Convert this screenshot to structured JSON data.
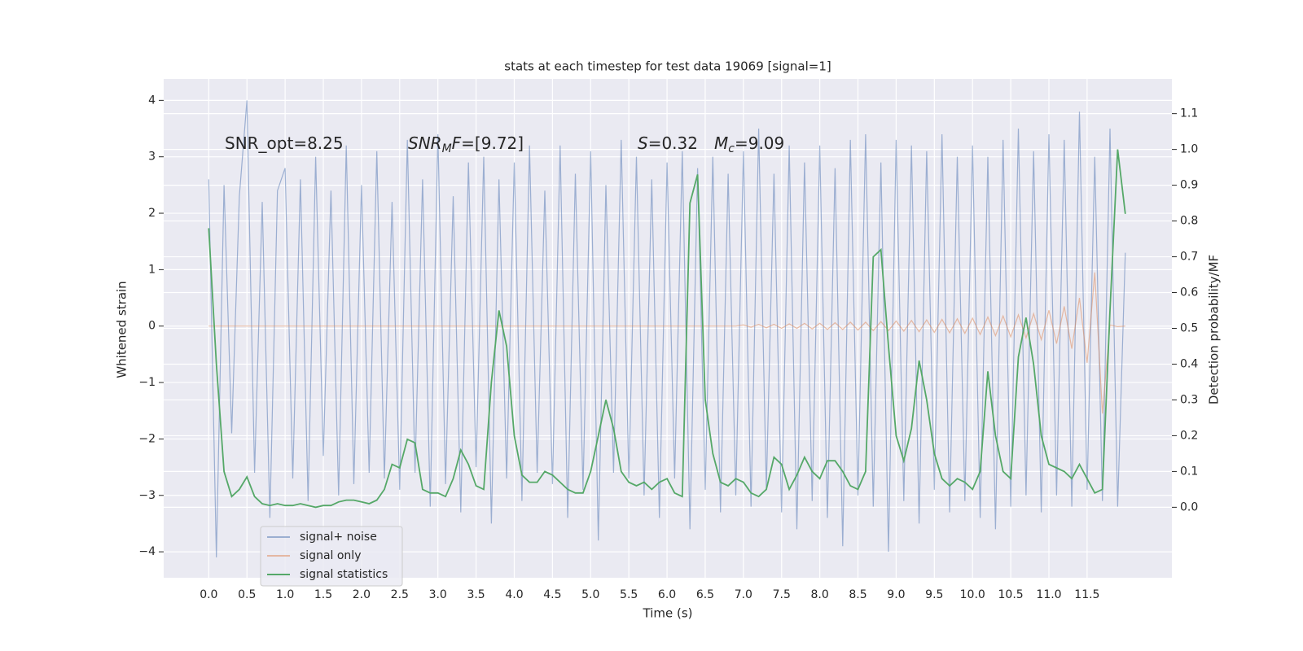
{
  "chart_data": {
    "type": "line",
    "title": "stats at each timestep for test data 19069 [signal=1]",
    "xlabel": "Time (s)",
    "ylabel": "Whitened strain",
    "y2label": "Detection probability/MF",
    "annotations": [
      [
        {
          "text": "SNR_opt=8.25"
        }
      ],
      [
        {
          "text": "SNR",
          "italic": true
        },
        {
          "text": "M",
          "italic": true,
          "sub": true
        },
        {
          "text": "F",
          "italic": true
        },
        {
          "text": "=[9.72]"
        }
      ],
      [
        {
          "text": "S",
          "italic": true
        },
        {
          "text": "=0.32"
        }
      ],
      [
        {
          "text": "M",
          "italic": true
        },
        {
          "text": "c",
          "italic": true,
          "sub": true
        },
        {
          "text": "=9.09"
        }
      ]
    ],
    "x": [
      0.0,
      0.1,
      0.2,
      0.3,
      0.4,
      0.5,
      0.6,
      0.7,
      0.8,
      0.9,
      1.0,
      1.1,
      1.2,
      1.3,
      1.4,
      1.5,
      1.6,
      1.7,
      1.8,
      1.9,
      2.0,
      2.1,
      2.2,
      2.3,
      2.4,
      2.5,
      2.6,
      2.7,
      2.8,
      2.9,
      3.0,
      3.1,
      3.2,
      3.3,
      3.4,
      3.5,
      3.6,
      3.7,
      3.8,
      3.9,
      4.0,
      4.1,
      4.2,
      4.3,
      4.4,
      4.5,
      4.6,
      4.7,
      4.8,
      4.9,
      5.0,
      5.1,
      5.2,
      5.3,
      5.4,
      5.5,
      5.6,
      5.7,
      5.8,
      5.9,
      6.0,
      6.1,
      6.2,
      6.3,
      6.4,
      6.5,
      6.6,
      6.7,
      6.8,
      6.9,
      7.0,
      7.1,
      7.2,
      7.3,
      7.4,
      7.5,
      7.6,
      7.7,
      7.8,
      7.9,
      8.0,
      8.1,
      8.2,
      8.3,
      8.4,
      8.5,
      8.6,
      8.7,
      8.8,
      8.9,
      9.0,
      9.1,
      9.2,
      9.3,
      9.4,
      9.5,
      9.6,
      9.7,
      9.8,
      9.9,
      10.0,
      10.1,
      10.2,
      10.3,
      10.4,
      10.5,
      10.6,
      10.7,
      10.8,
      10.9,
      11.0,
      11.1,
      11.2,
      11.3,
      11.4,
      11.5,
      11.6,
      11.7,
      11.8,
      11.9,
      12.0
    ],
    "series": [
      {
        "name": "signal+ noise",
        "color": "#4c72b0",
        "alpha": 0.5,
        "axis": "y",
        "values": [
          2.6,
          -4.1,
          2.5,
          -1.9,
          2.3,
          4.0,
          -2.6,
          2.2,
          -3.4,
          2.4,
          2.8,
          -2.7,
          2.6,
          -3.1,
          3.0,
          -2.3,
          2.4,
          -3.0,
          3.2,
          -2.8,
          2.5,
          -2.6,
          3.1,
          -2.7,
          2.2,
          -2.9,
          3.3,
          -2.6,
          2.6,
          -3.2,
          3.4,
          -2.8,
          2.3,
          -3.3,
          2.9,
          -2.5,
          3.0,
          -3.5,
          2.6,
          -2.7,
          2.9,
          -3.1,
          3.2,
          -2.6,
          2.4,
          -2.8,
          3.2,
          -3.4,
          2.7,
          -2.9,
          3.1,
          -3.8,
          2.5,
          -2.6,
          3.3,
          -2.7,
          3.0,
          -3.0,
          2.6,
          -3.4,
          2.9,
          -2.7,
          3.1,
          -3.6,
          2.8,
          -2.9,
          3.0,
          -3.3,
          2.7,
          -3.0,
          3.1,
          -3.2,
          3.5,
          -2.9,
          2.7,
          -3.3,
          3.2,
          -3.6,
          2.9,
          -3.1,
          3.2,
          -3.4,
          2.8,
          -3.9,
          3.3,
          -3.0,
          3.4,
          -3.2,
          2.9,
          -4.0,
          3.3,
          -3.1,
          3.2,
          -3.5,
          3.1,
          -2.9,
          3.4,
          -3.3,
          3.0,
          -3.1,
          3.2,
          -3.4,
          3.0,
          -3.6,
          3.3,
          -3.2,
          3.5,
          -3.0,
          3.1,
          -3.3,
          3.4,
          -3.0,
          3.3,
          -3.2,
          3.8,
          -2.9,
          3.0,
          -3.1,
          3.5,
          -3.2,
          1.3
        ]
      },
      {
        "name": "signal only",
        "color": "#dd8452",
        "alpha": 0.5,
        "axis": "y",
        "values": [
          0,
          0,
          0,
          0,
          0,
          0,
          0,
          0,
          0,
          0,
          0,
          0,
          0,
          0,
          0,
          0,
          0,
          0,
          0,
          0,
          0,
          0,
          0,
          0,
          0,
          0,
          0,
          0,
          0,
          0,
          0,
          0,
          0,
          0,
          0,
          0,
          0,
          0,
          0,
          0,
          0,
          0,
          0,
          0,
          0,
          0,
          0,
          0,
          0,
          0,
          0,
          0,
          0,
          0,
          0,
          0,
          0,
          0,
          0,
          0,
          0,
          0,
          0,
          0,
          0,
          0,
          0,
          0,
          0,
          0,
          0.02,
          -0.02,
          0.03,
          -0.03,
          0.03,
          -0.04,
          0.04,
          -0.04,
          0.05,
          -0.05,
          0.05,
          -0.06,
          0.06,
          -0.06,
          0.07,
          -0.07,
          0.07,
          -0.08,
          0.08,
          -0.08,
          0.09,
          -0.09,
          0.1,
          -0.1,
          0.11,
          -0.11,
          0.12,
          -0.12,
          0.13,
          -0.13,
          0.14,
          -0.15,
          0.16,
          -0.17,
          0.18,
          -0.19,
          0.2,
          -0.21,
          0.22,
          -0.24,
          0.28,
          -0.31,
          0.35,
          -0.4,
          0.5,
          -0.65,
          0.95,
          -1.55,
          0.02,
          -0.01,
          0
        ]
      },
      {
        "name": "signal statistics",
        "color": "#55a868",
        "alpha": 1,
        "axis": "y2",
        "values": [
          0.78,
          0.4,
          0.1,
          0.03,
          0.05,
          0.085,
          0.03,
          0.01,
          0.005,
          0.01,
          0.005,
          0.005,
          0.01,
          0.005,
          0.0,
          0.005,
          0.005,
          0.015,
          0.02,
          0.02,
          0.015,
          0.01,
          0.02,
          0.05,
          0.12,
          0.11,
          0.19,
          0.18,
          0.05,
          0.04,
          0.04,
          0.03,
          0.08,
          0.16,
          0.12,
          0.06,
          0.05,
          0.35,
          0.55,
          0.45,
          0.2,
          0.09,
          0.07,
          0.07,
          0.1,
          0.09,
          0.07,
          0.05,
          0.04,
          0.04,
          0.1,
          0.2,
          0.3,
          0.22,
          0.1,
          0.07,
          0.06,
          0.07,
          0.05,
          0.07,
          0.08,
          0.04,
          0.03,
          0.85,
          0.93,
          0.3,
          0.15,
          0.07,
          0.06,
          0.08,
          0.07,
          0.04,
          0.03,
          0.05,
          0.14,
          0.12,
          0.05,
          0.09,
          0.14,
          0.1,
          0.08,
          0.13,
          0.13,
          0.1,
          0.06,
          0.05,
          0.1,
          0.7,
          0.72,
          0.45,
          0.2,
          0.13,
          0.22,
          0.41,
          0.3,
          0.15,
          0.08,
          0.06,
          0.08,
          0.07,
          0.05,
          0.1,
          0.38,
          0.2,
          0.1,
          0.08,
          0.42,
          0.53,
          0.4,
          0.2,
          0.12,
          0.11,
          0.1,
          0.08,
          0.12,
          0.08,
          0.04,
          0.05,
          0.55,
          1.0,
          0.82
        ]
      }
    ],
    "xlim": [
      -0.59,
      12.61
    ],
    "xticks": [
      {
        "value": 0,
        "label": "0.0"
      },
      {
        "value": 0.5,
        "label": "0.5"
      },
      {
        "value": 1,
        "label": "1.0"
      },
      {
        "value": 1.5,
        "label": "1.5"
      },
      {
        "value": 2,
        "label": "2.0"
      },
      {
        "value": 2.5,
        "label": "2.5"
      },
      {
        "value": 3,
        "label": "3.0"
      },
      {
        "value": 3.5,
        "label": "3.5"
      },
      {
        "value": 4,
        "label": "4.0"
      },
      {
        "value": 4.5,
        "label": "4.5"
      },
      {
        "value": 5,
        "label": "5.0"
      },
      {
        "value": 5.5,
        "label": "5.5"
      },
      {
        "value": 6,
        "label": "6.0"
      },
      {
        "value": 6.5,
        "label": "6.5"
      },
      {
        "value": 7,
        "label": "7.0"
      },
      {
        "value": 7.5,
        "label": "7.5"
      },
      {
        "value": 8,
        "label": "8.0"
      },
      {
        "value": 8.5,
        "label": "8.5"
      },
      {
        "value": 9,
        "label": "9.0"
      },
      {
        "value": 9.5,
        "label": "9.5"
      },
      {
        "value": 10,
        "label": "10.0"
      },
      {
        "value": 10.5,
        "label": "10.5"
      },
      {
        "value": 11,
        "label": "11.0"
      },
      {
        "value": 11.5,
        "label": "11.5"
      }
    ],
    "ylim": [
      -4.46,
      4.38
    ],
    "yticks": [
      {
        "value": -4,
        "label": "−4"
      },
      {
        "value": -3,
        "label": "−3"
      },
      {
        "value": -2,
        "label": "−2"
      },
      {
        "value": -1,
        "label": "−1"
      },
      0,
      1,
      2,
      3,
      4
    ],
    "y2lim": [
      -0.197,
      1.197
    ],
    "y2ticks": [
      {
        "value": 0,
        "label": "0.0"
      },
      0.1,
      0.2,
      0.3,
      0.4,
      0.5,
      0.6,
      0.7,
      0.8,
      0.9,
      {
        "value": 1,
        "label": "1.0"
      },
      1.1
    ],
    "grid": true,
    "legend": "lower left"
  }
}
